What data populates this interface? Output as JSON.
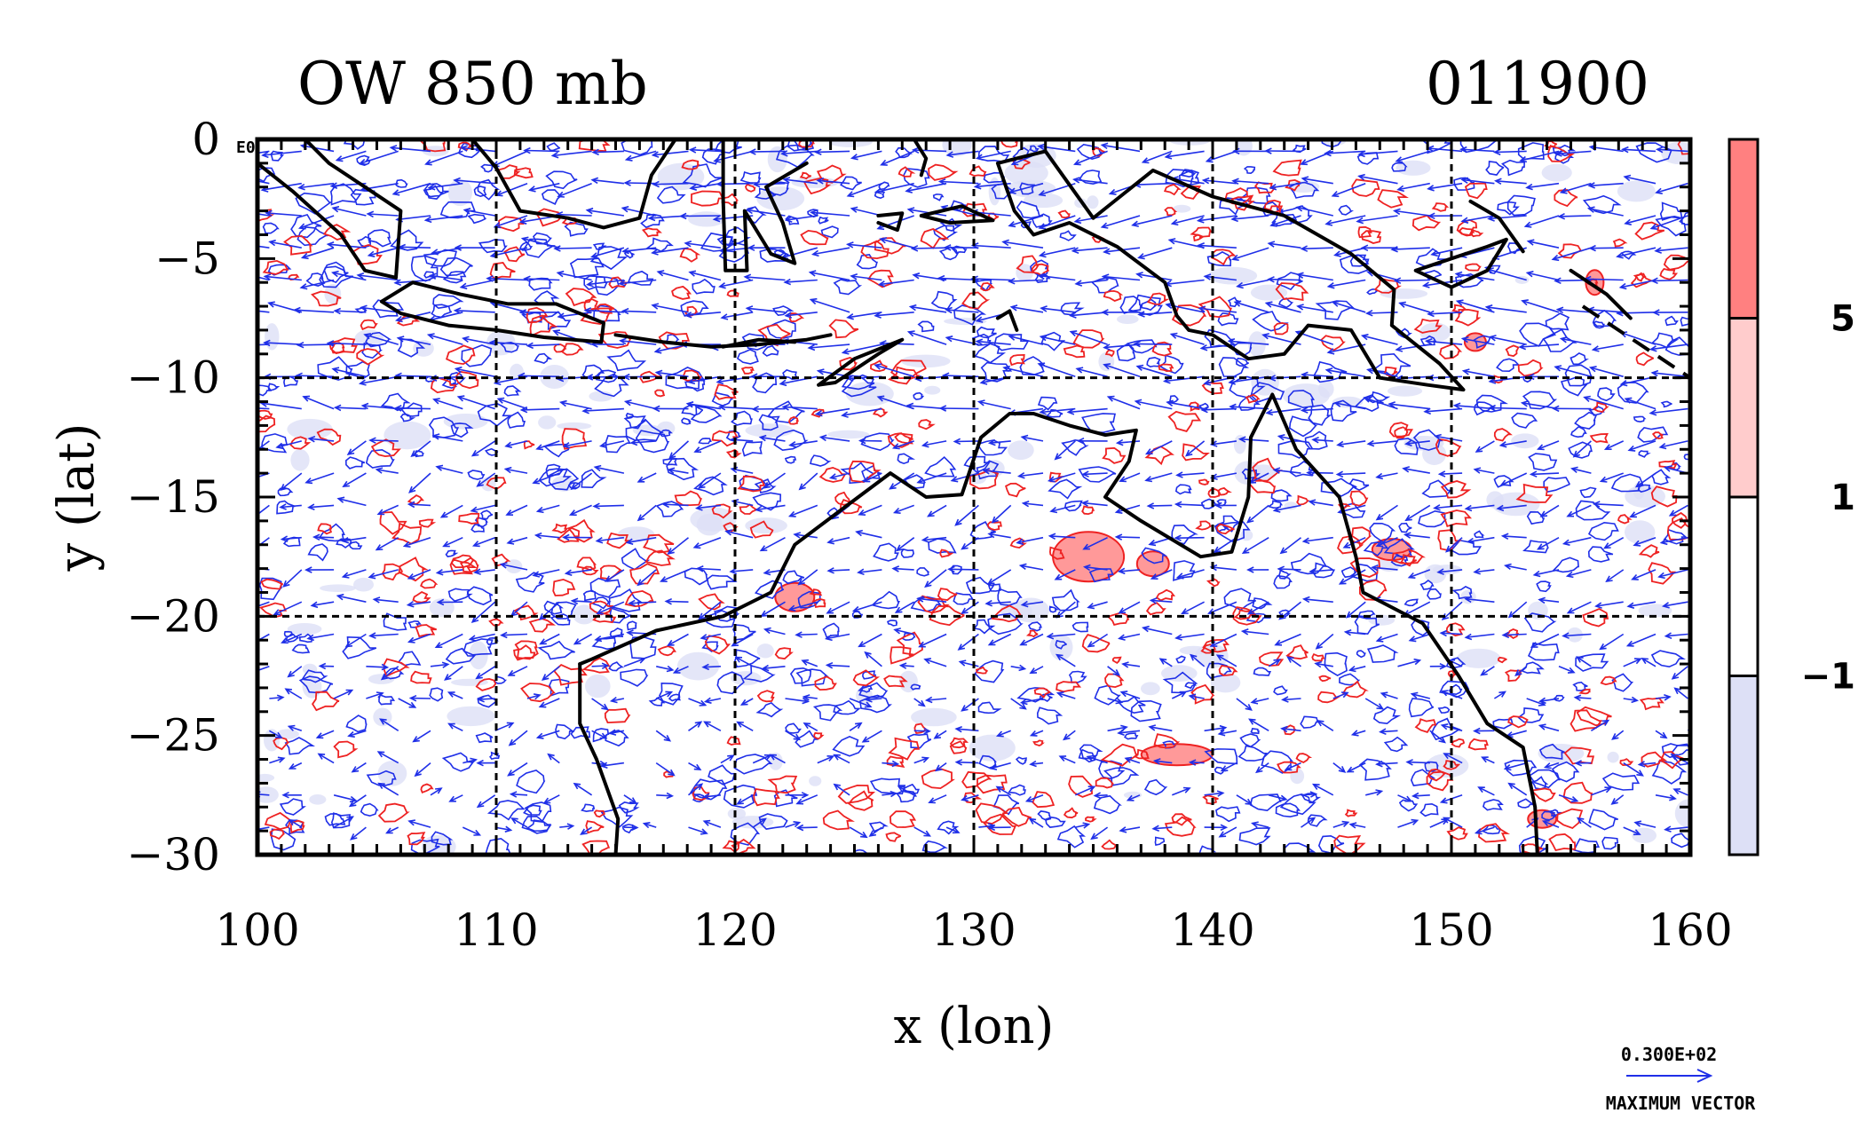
{
  "chart_data": {
    "type": "contour",
    "title": "OW 850 mb",
    "time_label": "011900",
    "xlabel": "x (lon)",
    "ylabel": "y (lat)",
    "xlim": [
      100,
      160
    ],
    "ylim": [
      -30,
      0
    ],
    "x_ticks": [
      100,
      110,
      120,
      130,
      140,
      150,
      160
    ],
    "y_ticks": [
      0,
      -5,
      -10,
      -15,
      -20,
      -25,
      -30
    ],
    "x_tick_labels": [
      "100",
      "110",
      "120",
      "130",
      "140",
      "150",
      "160"
    ],
    "y_tick_labels": [
      "0",
      "−5",
      "−10",
      "−15",
      "−20",
      "−25",
      "−30"
    ],
    "y_exponent_label": "E0",
    "grid": true,
    "grid_style": "dashed",
    "colorbar": {
      "levels": [
        -1,
        1,
        5
      ],
      "labels": [
        "−1",
        "1",
        "5"
      ],
      "colors": [
        "#dde0f6",
        "#ffffff",
        "#ffcccc",
        "#ff8080"
      ]
    },
    "vector_legend": {
      "magnitude_label": "0.300E+02",
      "caption": "MAXIMUM VECTOR",
      "color": "#1f2fe8"
    },
    "colors": {
      "positive_contour": "#ee2222",
      "negative_contour": "#1f2fe8",
      "coastline": "#000000",
      "positive_fill": "#ff9999",
      "negative_fill": "#dde0f6"
    }
  }
}
